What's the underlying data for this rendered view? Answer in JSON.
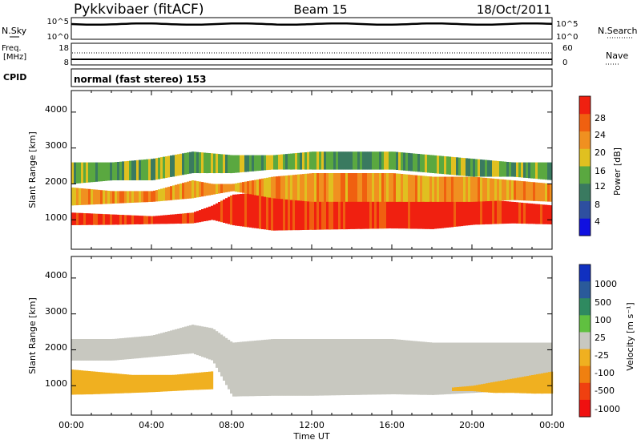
{
  "header": {
    "station": "Pykkvibaer (fitACF)",
    "beam": "Beam 15",
    "date": "18/Oct/2011"
  },
  "noise_panel": {
    "left_label": "N.Sky",
    "left_ticks": [
      "10^5",
      "10^0"
    ],
    "right_ticks": [
      "10^5",
      "10^0"
    ],
    "right_label": "N.Search"
  },
  "freq_panel": {
    "left_label_1": "Freq.",
    "left_label_2": "[MHz]",
    "left_ticks": [
      "18",
      "8"
    ],
    "right_ticks": [
      "60",
      "0"
    ],
    "right_label": "Nave"
  },
  "cpid_panel": {
    "label": "CPID",
    "value": "normal (fast stereo) 153"
  },
  "power_panel": {
    "ylabel": "Slant Range [km]",
    "yticks": [
      "1000",
      "2000",
      "3000",
      "4000"
    ],
    "colorbar_label": "Power [dB]",
    "colorbar_ticks": [
      "4",
      "8",
      "12",
      "16",
      "20",
      "24",
      "28"
    ],
    "colorbar_colors": [
      "#1010e0",
      "#2e4fa0",
      "#3a7a60",
      "#5aa840",
      "#e0c020",
      "#f09020",
      "#f06010",
      "#f02010"
    ]
  },
  "velocity_panel": {
    "ylabel": "Slant Range [km]",
    "yticks": [
      "1000",
      "2000",
      "3000",
      "4000"
    ],
    "colorbar_label": "Velocity [m s⁻¹]",
    "colorbar_ticks": [
      "1000",
      "500",
      "100",
      "25",
      "-25",
      "-100",
      "-500",
      "-1000"
    ],
    "colorbar_colors": [
      "#1030c0",
      "#2a5a9a",
      "#2f8a60",
      "#60c040",
      "#c8c8c0",
      "#f0b020",
      "#f08010",
      "#f04010",
      "#f01010"
    ]
  },
  "xaxis": {
    "ticks": [
      "00:00",
      "04:00",
      "08:00",
      "12:00",
      "16:00",
      "20:00",
      "00:00"
    ],
    "label": "Time UT"
  },
  "chart_data": {
    "type": "heatmap",
    "title": "Pykkvibaer (fitACF)  Beam 15  18/Oct/2011",
    "xlabel": "Time UT",
    "xlim_hours": [
      0,
      24
    ],
    "panels": [
      {
        "name": "Power",
        "ylabel": "Slant Range [km]",
        "ylim": [
          180,
          4600
        ],
        "colorbar_range_db": [
          0,
          32
        ],
        "bands": [
          {
            "x": [
              0,
              2,
              4,
              6,
              7,
              8,
              10,
              12,
              14,
              16,
              18,
              19,
              20,
              22,
              24
            ],
            "y_low": [
              850,
              860,
              880,
              900,
              1000,
              850,
              700,
              720,
              740,
              760,
              740,
              800,
              860,
              900,
              870
            ],
            "y_high": [
              1200,
              1150,
              1100,
              1200,
              1400,
              1700,
              1800,
              1900,
              2000,
              2100,
              2000,
              1800,
              1600,
              1500,
              1400
            ],
            "db": 26
          },
          {
            "x": [
              0,
              2,
              4,
              6,
              7,
              8,
              10,
              12,
              14,
              16,
              18,
              20,
              22,
              24
            ],
            "y_low": [
              1400,
              1450,
              1500,
              1600,
              1700,
              1800,
              1600,
              1500,
              1500,
              1500,
              1500,
              1500,
              1550,
              1500
            ],
            "y_high": [
              1900,
              1800,
              1800,
              2100,
              2000,
              2000,
              2200,
              2300,
              2300,
              2300,
              2200,
              2200,
              2100,
              2000
            ],
            "db": 20
          },
          {
            "x": [
              0,
              2,
              4,
              6,
              8,
              10,
              12,
              14,
              16,
              18,
              20,
              22,
              24
            ],
            "y_low": [
              2000,
              2100,
              2100,
              2300,
              2300,
              2400,
              2400,
              2400,
              2400,
              2300,
              2200,
              2200,
              2100
            ],
            "y_high": [
              2600,
              2600,
              2700,
              2900,
              2800,
              2800,
              2900,
              2900,
              2900,
              2800,
              2700,
              2600,
              2600
            ],
            "db": 12
          }
        ]
      },
      {
        "name": "Velocity",
        "ylabel": "Slant Range [km]",
        "ylim": [
          180,
          4600
        ],
        "colorbar_ticks_ms": [
          1000,
          500,
          100,
          25,
          -25,
          -100,
          -500,
          -1000
        ],
        "bands": [
          {
            "x": [
              0,
              2,
              4,
              6,
              7,
              8,
              10,
              12,
              14,
              16,
              18,
              20,
              22,
              24
            ],
            "y_low": [
              1700,
              1700,
              1800,
              1900,
              1700,
              700,
              720,
              720,
              740,
              760,
              740,
              800,
              860,
              860
            ],
            "y_high": [
              2300,
              2300,
              2400,
              2700,
              2600,
              2200,
              2300,
              2300,
              2300,
              2300,
              2200,
              2200,
              2200,
              2200
            ],
            "velocity_ms": 0
          },
          {
            "x": [
              0,
              1,
              2,
              3,
              4,
              5,
              6,
              7
            ],
            "y_low": [
              750,
              760,
              780,
              800,
              820,
              850,
              880,
              900
            ],
            "y_high": [
              1450,
              1400,
              1350,
              1300,
              1300,
              1300,
              1350,
              1400
            ],
            "velocity_ms": -150
          },
          {
            "x": [
              19,
              20,
              21,
              22,
              23,
              24
            ],
            "y_low": [
              850,
              850,
              800,
              800,
              780,
              780
            ],
            "y_high": [
              950,
              1000,
              1100,
              1200,
              1300,
              1400
            ],
            "velocity_ms": -200
          }
        ]
      }
    ]
  }
}
